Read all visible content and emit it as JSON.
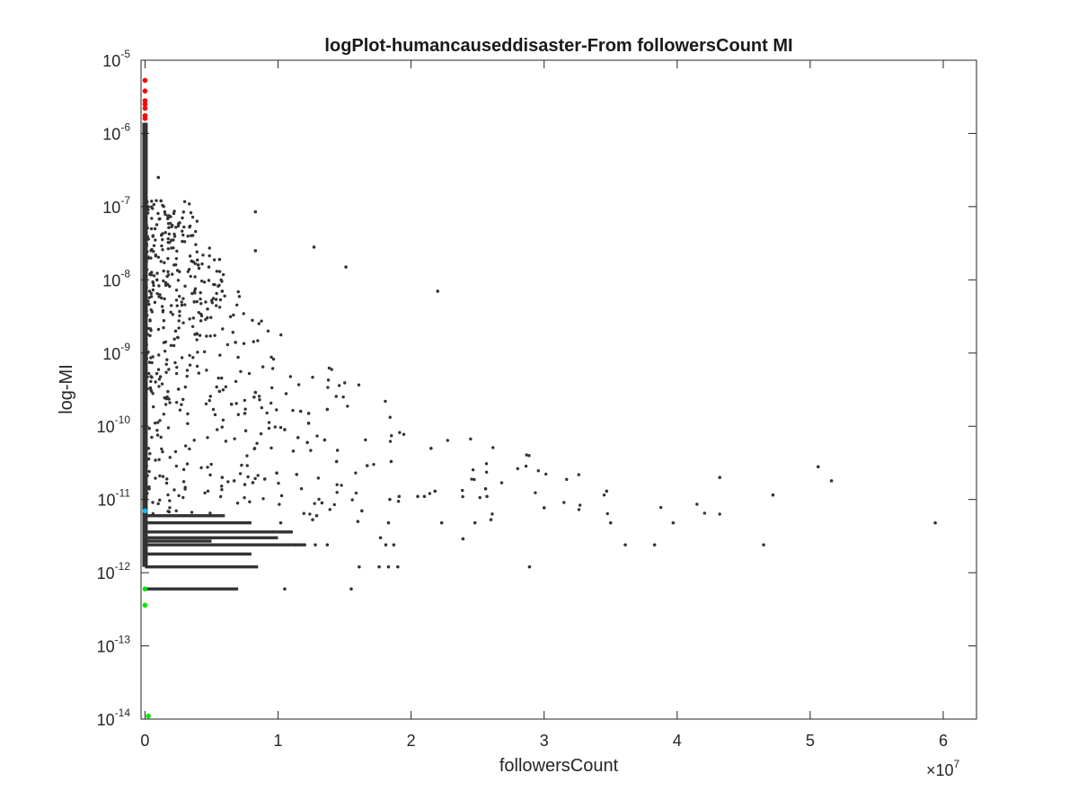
{
  "chart_data": {
    "type": "scatter",
    "title": "logPlot-humancauseddisaster-From followersCount MI",
    "xlabel": "followersCount",
    "ylabel": "log-MI",
    "x_multiplier_label": "×10",
    "x_multiplier_exponent": "7",
    "xlim": [
      -300000,
      62500000
    ],
    "ylim": [
      1e-14,
      1e-05
    ],
    "y_scale": "log",
    "grid": false,
    "legend": "none",
    "x_ticks": [
      {
        "value": 0,
        "label": "0"
      },
      {
        "value": 10000000,
        "label": "1"
      },
      {
        "value": 20000000,
        "label": "2"
      },
      {
        "value": 30000000,
        "label": "3"
      },
      {
        "value": 40000000,
        "label": "4"
      },
      {
        "value": 50000000,
        "label": "5"
      },
      {
        "value": 60000000,
        "label": "6"
      }
    ],
    "y_ticks": [
      {
        "value": 1e-14,
        "base": "10",
        "exp": "-14"
      },
      {
        "value": 1e-13,
        "base": "10",
        "exp": "-13"
      },
      {
        "value": 1e-12,
        "base": "10",
        "exp": "-12"
      },
      {
        "value": 1e-11,
        "base": "10",
        "exp": "-11"
      },
      {
        "value": 1e-10,
        "base": "10",
        "exp": "-10"
      },
      {
        "value": 1e-09,
        "base": "10",
        "exp": "-9"
      },
      {
        "value": 1e-08,
        "base": "10",
        "exp": "-8"
      },
      {
        "value": 1e-07,
        "base": "10",
        "exp": "-7"
      },
      {
        "value": 1e-06,
        "base": "10",
        "exp": "-6"
      },
      {
        "value": 1e-05,
        "base": "10",
        "exp": "-5"
      }
    ],
    "series": [
      {
        "color": "#333333",
        "points": [
          [
            8300000,
            8.5e-08
          ],
          [
            8300000,
            2.5e-08
          ],
          [
            12700000,
            2.8e-08
          ],
          [
            15100000,
            1.5e-08
          ],
          [
            22000000,
            7e-09
          ],
          [
            1800000,
            7.5e-08
          ],
          [
            3500000,
            1.8e-08
          ],
          [
            4000000,
            1.6e-08
          ],
          [
            4800000,
            1.5e-08
          ],
          [
            5600000,
            1.9e-08
          ],
          [
            5800000,
            7e-09
          ],
          [
            6800000,
            1.4e-09
          ],
          [
            2300000,
            2e-09
          ],
          [
            3700000,
            5e-09
          ],
          [
            4700000,
            4e-09
          ],
          [
            1000000,
            2.5e-07
          ],
          [
            1200000,
            1.2e-07
          ],
          [
            2600000,
            6e-08
          ],
          [
            600000,
            4e-08
          ],
          [
            900000,
            1e-08
          ],
          [
            8200000,
            2.5e-10
          ],
          [
            8300000,
            2.9e-10
          ],
          [
            11700000,
            1.6e-10
          ],
          [
            12300000,
            1.5e-10
          ],
          [
            13700000,
            1.7e-10
          ],
          [
            12300000,
            1.1e-10
          ],
          [
            7500000,
            1.5e-10
          ],
          [
            6500000,
            2e-10
          ],
          [
            5600000,
            3e-10
          ],
          [
            10500000,
            9e-11
          ],
          [
            11500000,
            7e-11
          ],
          [
            12200000,
            6e-11
          ],
          [
            13500000,
            6.5e-11
          ],
          [
            14400000,
            3.3e-11
          ],
          [
            16700000,
            2.9e-11
          ],
          [
            18500000,
            3.3e-11
          ],
          [
            21500000,
            5e-11
          ],
          [
            21000000,
            1.1e-11
          ],
          [
            21800000,
            1.3e-11
          ],
          [
            22300000,
            4.8e-12
          ],
          [
            23900000,
            2.9e-12
          ],
          [
            24800000,
            4.8e-12
          ],
          [
            25600000,
            1.4e-11
          ],
          [
            25700000,
            1.1e-11
          ],
          [
            26000000,
            5.3e-12
          ],
          [
            28900000,
            1.2e-12
          ],
          [
            30000000,
            7.7e-12
          ],
          [
            34700000,
            1.3e-11
          ],
          [
            35000000,
            4.8e-12
          ],
          [
            36100000,
            2.4e-12
          ],
          [
            38300000,
            2.4e-12
          ],
          [
            39700000,
            4.8e-12
          ],
          [
            43200000,
            2e-11
          ],
          [
            46500000,
            2.4e-12
          ],
          [
            47200000,
            1.15e-11
          ],
          [
            50600000,
            2.8e-11
          ],
          [
            51600000,
            1.8e-11
          ],
          [
            59400000,
            4.8e-12
          ],
          [
            15500000,
            6e-13
          ],
          [
            10500000,
            6e-13
          ],
          [
            16100000,
            1.2e-12
          ],
          [
            17600000,
            1.2e-12
          ],
          [
            18300000,
            1.2e-12
          ],
          [
            19000000,
            1.2e-12
          ],
          [
            18100000,
            2.4e-12
          ],
          [
            18700000,
            2.4e-12
          ],
          [
            17700000,
            3e-12
          ],
          [
            18300000,
            4.8e-12
          ],
          [
            13700000,
            2.4e-12
          ],
          [
            12800000,
            2.4e-12
          ],
          [
            12000000,
            2.4e-12
          ],
          [
            11300000,
            2.4e-12
          ],
          [
            11000000,
            3.6e-12
          ],
          [
            10200000,
            4.8e-12
          ],
          [
            9600000,
            3.6e-12
          ],
          [
            12600000,
            5.3e-12
          ],
          [
            12900000,
            6e-12
          ],
          [
            13300000,
            9e-12
          ],
          [
            16300000,
            7e-12
          ],
          [
            16000000,
            5e-12
          ],
          [
            18400000,
            1e-11
          ],
          [
            19100000,
            1.1e-11
          ],
          [
            20500000,
            1.1e-11
          ],
          [
            11400000,
            2.2e-11
          ],
          [
            9900000,
            2.3e-11
          ],
          [
            9000000,
            1.9e-11
          ],
          [
            8100000,
            1.7e-11
          ],
          [
            7500000,
            1.6e-11
          ],
          [
            6700000,
            1.8e-11
          ],
          [
            5800000,
            2e-11
          ]
        ]
      },
      {
        "color": "#ff0000",
        "points": [
          [
            0,
            5.3e-06
          ],
          [
            0,
            3.8e-06
          ],
          [
            0,
            2.8e-06
          ],
          [
            0,
            2.5e-06
          ],
          [
            0,
            2.2e-06
          ],
          [
            0,
            1.75e-06
          ],
          [
            0,
            1.6e-06
          ]
        ]
      },
      {
        "color": "#1ab3ff",
        "points": [
          [
            0,
            7e-12
          ]
        ]
      },
      {
        "color": "#00e600",
        "points": [
          [
            0,
            6e-13
          ],
          [
            0,
            3.6e-13
          ],
          [
            250000,
            1.1e-14
          ]
        ]
      }
    ]
  }
}
